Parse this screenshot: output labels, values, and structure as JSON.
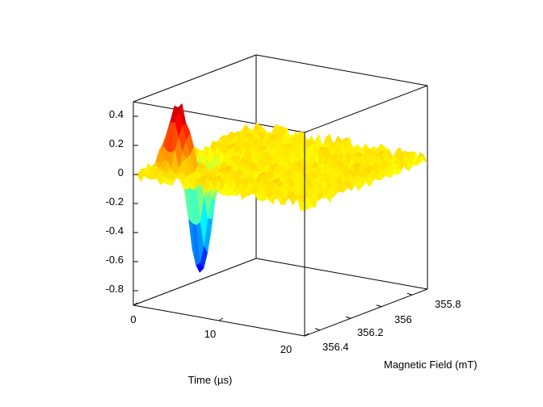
{
  "chart_data": {
    "type": "surface",
    "title": "",
    "xlabel": "Time (µs)",
    "ylabel": "Magnetic Field (mT)",
    "zlabel": "",
    "xlim": [
      0,
      20
    ],
    "ylim": [
      355.7,
      356.5
    ],
    "zlim": [
      -0.9,
      0.5
    ],
    "x_ticks": [
      "0",
      "10",
      "20"
    ],
    "y_ticks": [
      "355.8",
      "356",
      "356.2",
      "356.4"
    ],
    "z_ticks": [
      "0.4",
      "0.2",
      "0",
      "-0.2",
      "-0.4",
      "-0.6",
      "-0.8"
    ],
    "grid": false,
    "colormap": "jet",
    "features": [
      {
        "name": "positive-peak",
        "time": 2.5,
        "field": 356.35,
        "value": 0.47
      },
      {
        "name": "negative-peak",
        "time": 2.5,
        "field": 356.2,
        "value": -0.8
      }
    ],
    "noise_amplitude": 0.05
  }
}
